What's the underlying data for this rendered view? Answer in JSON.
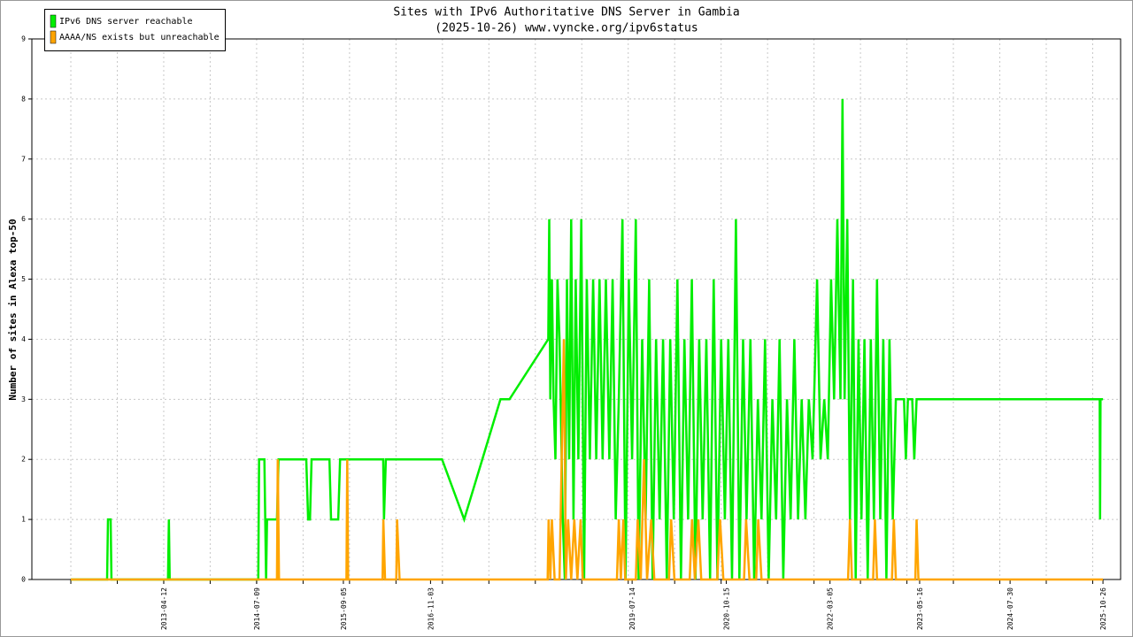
{
  "chart_data": {
    "type": "line",
    "title": "Sites with IPv6 Authoritative DNS Server in Gambia",
    "subtitle": "(2025-10-26) www.vyncke.org/ipv6status",
    "y_label": "Number of sites in Alexa top-50",
    "xlim": [
      "2011-07-09",
      "2026-01-20"
    ],
    "xticks": [
      "2013-04-12",
      "2014-07-09",
      "2015-09-05",
      "2016-11-03",
      "2019-07-14",
      "2020-10-15",
      "2022-03-05",
      "2023-05-16",
      "2024-07-30",
      "2025-10-26"
    ],
    "ylim": [
      0,
      9
    ],
    "yticks": [
      0,
      1,
      2,
      3,
      4,
      5,
      6,
      7,
      8,
      9
    ],
    "grid": true,
    "legend": "upper left",
    "series": [
      {
        "name": "IPv6 DNS server reachable",
        "color": "#00ee00",
        "x": [
          "2012-01-15",
          "2012-07-10",
          "2012-07-14",
          "2012-07-27",
          "2012-07-31",
          "2013-05-03",
          "2013-05-07",
          "2013-05-11",
          "2014-07-17",
          "2014-07-21",
          "2014-08-16",
          "2014-08-24",
          "2014-08-29",
          "2014-10-16",
          "2014-10-24",
          "2015-03-08",
          "2015-03-17",
          "2015-03-26",
          "2015-04-03",
          "2015-06-29",
          "2015-07-07",
          "2015-08-11",
          "2015-08-20",
          "2016-03-17",
          "2016-03-21",
          "2016-03-30",
          "2016-12-29",
          "2017-04-16",
          "2017-10-10",
          "2017-11-23",
          "2018-05-31",
          "2018-06-05",
          "2018-06-10",
          "2018-06-18",
          "2018-06-26",
          "2018-07-05",
          "2018-07-15",
          "2018-07-25",
          "2018-08-10",
          "2018-08-20",
          "2018-08-30",
          "2018-09-10",
          "2018-09-20",
          "2018-10-01",
          "2018-10-12",
          "2018-10-25",
          "2018-11-08",
          "2018-11-22",
          "2018-12-05",
          "2018-12-20",
          "2019-01-05",
          "2019-01-20",
          "2019-02-05",
          "2019-02-20",
          "2019-03-08",
          "2019-03-25",
          "2019-04-10",
          "2019-04-25",
          "2019-05-10",
          "2019-05-28",
          "2019-06-12",
          "2019-06-28",
          "2019-07-14",
          "2019-08-01",
          "2019-08-15",
          "2019-09-01",
          "2019-09-18",
          "2019-10-05",
          "2019-10-22",
          "2019-11-08",
          "2019-11-25",
          "2019-12-12",
          "2019-12-30",
          "2020-01-16",
          "2020-02-02",
          "2020-02-20",
          "2020-03-08",
          "2020-03-25",
          "2020-04-12",
          "2020-04-30",
          "2020-05-18",
          "2020-06-05",
          "2020-06-22",
          "2020-07-10",
          "2020-07-28",
          "2020-08-15",
          "2020-09-02",
          "2020-09-20",
          "2020-10-08",
          "2020-10-25",
          "2020-11-12",
          "2020-12-01",
          "2020-12-18",
          "2021-01-05",
          "2021-01-22",
          "2021-02-10",
          "2021-02-28",
          "2021-03-18",
          "2021-04-05",
          "2021-04-22",
          "2021-05-10",
          "2021-05-28",
          "2021-06-15",
          "2021-07-02",
          "2021-07-20",
          "2021-08-07",
          "2021-08-25",
          "2021-09-12",
          "2021-09-30",
          "2021-10-18",
          "2021-11-05",
          "2021-11-22",
          "2021-12-10",
          "2022-01-01",
          "2022-01-18",
          "2022-02-05",
          "2022-02-22",
          "2022-03-10",
          "2022-03-25",
          "2022-04-10",
          "2022-04-25",
          "2022-05-05",
          "2022-05-15",
          "2022-05-28",
          "2022-06-10",
          "2022-06-25",
          "2022-07-08",
          "2022-07-22",
          "2022-08-05",
          "2022-08-20",
          "2022-09-05",
          "2022-09-20",
          "2022-10-05",
          "2022-10-20",
          "2022-11-05",
          "2022-11-20",
          "2022-12-05",
          "2022-12-20",
          "2023-01-05",
          "2023-01-20",
          "2023-02-06",
          "2023-03-01",
          "2023-03-10",
          "2023-03-20",
          "2023-04-10",
          "2023-04-20",
          "2023-05-01",
          "2023-05-20",
          "2025-10-10",
          "2025-10-12",
          "2025-10-14",
          "2025-10-26"
        ],
        "values": [
          0,
          0,
          1,
          1,
          0,
          0,
          1,
          0,
          0,
          2,
          2,
          0,
          1,
          1,
          2,
          2,
          1,
          1,
          2,
          2,
          1,
          1,
          2,
          2,
          1,
          2,
          2,
          1,
          3,
          3,
          4,
          6,
          3,
          5,
          3,
          2,
          5,
          4,
          1,
          0,
          5,
          2,
          6,
          1,
          5,
          2,
          6,
          0,
          5,
          2,
          5,
          2,
          5,
          2,
          5,
          2,
          5,
          1,
          3,
          6,
          0,
          5,
          2,
          6,
          0,
          4,
          1,
          5,
          0,
          4,
          1,
          4,
          0,
          4,
          1,
          5,
          0,
          4,
          1,
          5,
          0,
          4,
          1,
          4,
          0,
          5,
          0,
          4,
          1,
          4,
          0,
          6,
          0,
          4,
          1,
          4,
          0,
          3,
          1,
          4,
          0,
          3,
          1,
          4,
          0,
          3,
          1,
          4,
          1,
          3,
          1,
          3,
          2,
          5,
          2,
          3,
          2,
          5,
          3,
          6,
          3,
          8,
          3,
          6,
          1,
          5,
          0,
          4,
          1,
          4,
          0,
          4,
          1,
          5,
          1,
          4,
          0,
          4,
          1,
          3,
          3,
          3,
          2,
          3,
          3,
          2,
          3,
          3,
          3,
          1,
          3,
          3
        ]
      },
      {
        "name": "AAAA/NS exists but unreachable",
        "color": "#ffa500",
        "x": [
          "2012-01-15",
          "2014-10-16",
          "2014-10-20",
          "2014-10-26",
          "2015-09-20",
          "2015-09-24",
          "2015-09-28",
          "2016-03-14",
          "2016-03-18",
          "2016-03-26",
          "2016-05-20",
          "2016-05-24",
          "2016-06-05",
          "2018-05-28",
          "2018-06-02",
          "2018-06-10",
          "2018-06-18",
          "2018-07-01",
          "2018-07-25",
          "2018-08-15",
          "2018-08-25",
          "2018-09-05",
          "2018-09-20",
          "2018-10-05",
          "2018-10-20",
          "2018-11-05",
          "2018-11-15",
          "2019-05-01",
          "2019-05-10",
          "2019-05-20",
          "2019-06-01",
          "2019-06-10",
          "2019-08-01",
          "2019-08-10",
          "2019-08-25",
          "2019-09-10",
          "2019-09-25",
          "2019-10-15",
          "2019-10-30",
          "2020-01-10",
          "2020-01-20",
          "2020-02-05",
          "2020-04-20",
          "2020-05-01",
          "2020-05-15",
          "2020-06-01",
          "2020-06-15",
          "2020-09-01",
          "2020-09-15",
          "2020-10-01",
          "2021-01-10",
          "2021-01-20",
          "2021-02-05",
          "2021-03-10",
          "2021-03-20",
          "2021-04-05",
          "2022-06-01",
          "2022-06-10",
          "2022-06-20",
          "2022-10-01",
          "2022-10-10",
          "2022-10-20",
          "2023-01-01",
          "2023-01-10",
          "2023-01-20",
          "2023-04-25",
          "2023-05-01",
          "2023-05-10",
          "2025-10-26"
        ],
        "values": [
          0,
          0,
          2,
          0,
          0,
          2,
          0,
          0,
          1,
          0,
          0,
          1,
          0,
          0,
          1,
          0,
          1,
          0,
          0,
          4,
          0,
          1,
          0,
          1,
          0,
          1,
          0,
          0,
          1,
          0,
          1,
          0,
          0,
          1,
          0,
          2,
          0,
          1,
          0,
          0,
          1,
          0,
          0,
          1,
          0,
          1,
          0,
          0,
          1,
          0,
          0,
          1,
          0,
          0,
          1,
          0,
          0,
          1,
          0,
          0,
          1,
          0,
          0,
          1,
          0,
          0,
          1,
          0,
          0
        ]
      }
    ]
  }
}
